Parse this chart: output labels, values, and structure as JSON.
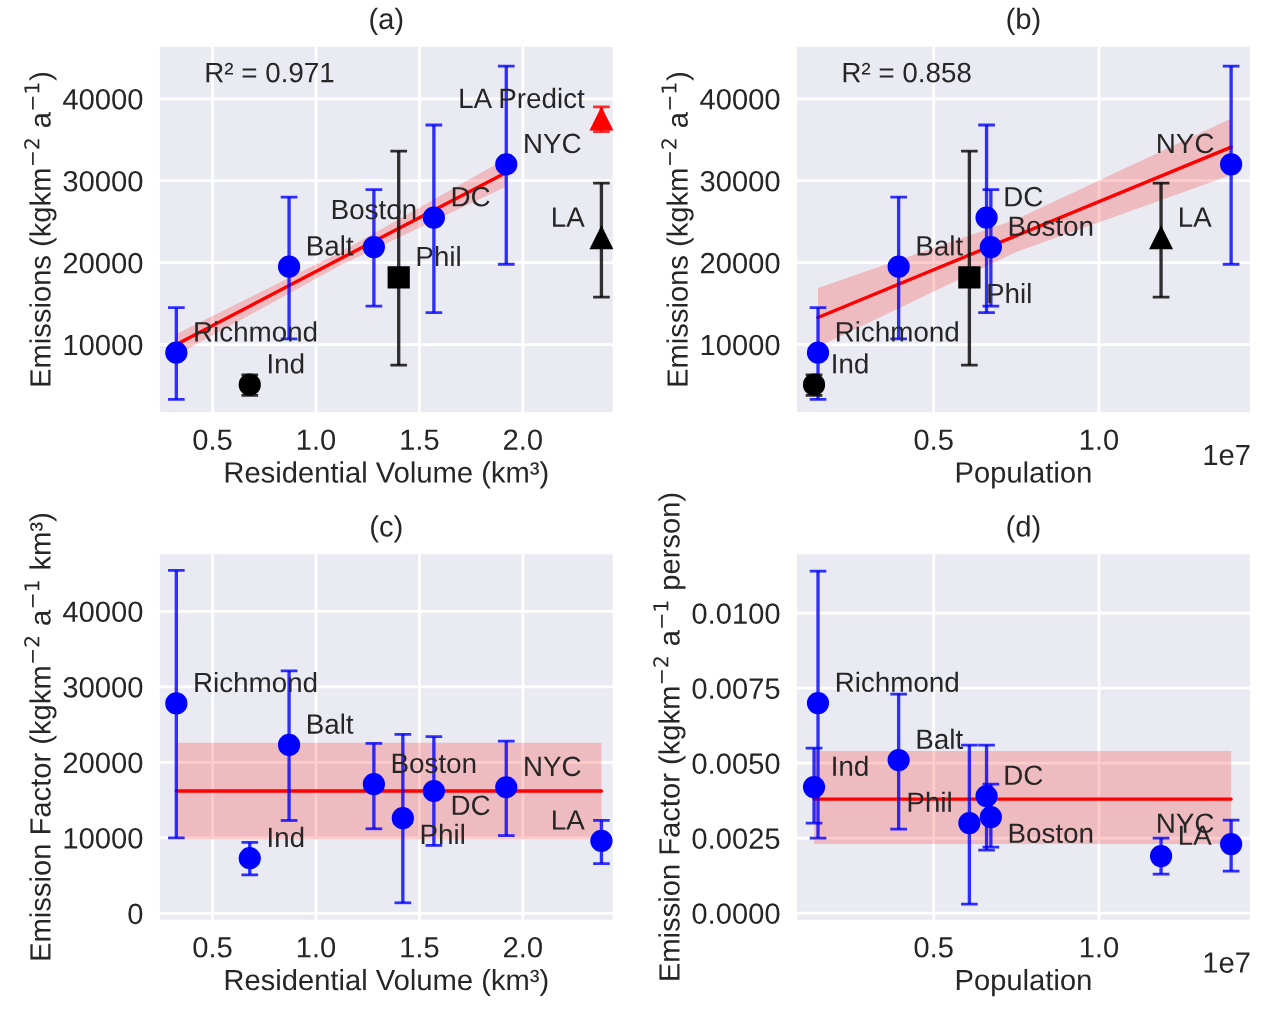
{
  "chart_data": [
    {
      "type": "scatter",
      "title": "(a)",
      "xlabel": "Residential Volume (km³)",
      "ylabel": "Emissions (kgkm$^{−2}$ a$^{−1}$)",
      "xlim": [
        0.24,
        2.44
      ],
      "xticks": [
        {
          "value": 0.5,
          "label": "0.5"
        },
        {
          "value": 1.0,
          "label": "1.0"
        },
        {
          "value": 1.5,
          "label": "1.5"
        },
        {
          "value": 2.0,
          "label": "2.0"
        }
      ],
      "ylim": [
        1600,
        46500
      ],
      "yticks": [
        10000,
        20000,
        30000,
        40000
      ],
      "grid": true,
      "legend": false,
      "series": [
        {
          "type": "scatter",
          "marker": "circle",
          "color": "#0000ff",
          "x": [
            0.325,
            0.87,
            1.28,
            1.57,
            1.92
          ],
          "values": [
            9000,
            19500,
            21900,
            25500,
            32000
          ],
          "errors": [
            [
              3300,
              14500
            ],
            [
              10700,
              28000
            ],
            [
              14700,
              28900
            ],
            [
              13900,
              36800
            ],
            [
              19800,
              44000
            ]
          ]
        },
        {
          "type": "scatter",
          "marker": "circle",
          "color": "#000000",
          "x": [
            0.68
          ],
          "values": [
            5100
          ],
          "errors": [
            [
              3800,
              6300
            ]
          ]
        },
        {
          "type": "scatter",
          "marker": "square",
          "color": "#000000",
          "x": [
            1.4
          ],
          "values": [
            18200
          ],
          "errors": [
            [
              7500,
              33600
            ]
          ]
        },
        {
          "type": "scatter",
          "marker": "triangle",
          "color": "#000000",
          "x": [
            2.38
          ],
          "values": [
            23000
          ],
          "errors": [
            [
              15800,
              29700
            ]
          ]
        },
        {
          "type": "scatter",
          "marker": "triangle",
          "color": "#ff0000",
          "x": [
            2.38
          ],
          "values": [
            37500
          ],
          "errors": [
            [
              36000,
              39000
            ]
          ]
        },
        {
          "type": "line",
          "marker": "none",
          "color": "#ff0000",
          "x": [
            0.325,
            1.12,
            1.92
          ],
          "values": [
            10000,
            20500,
            31000
          ],
          "lower": [
            8700,
            19700,
            29300
          ],
          "upper": [
            11300,
            21300,
            32700
          ]
        }
      ],
      "annotations": [
        "R² = 0.971",
        {
          "text": "Richmond",
          "x": 0.325,
          "y": 9000
        },
        {
          "text": "Balt",
          "x": 0.87,
          "y": 19500
        },
        {
          "text": "Boston",
          "x": 1.28,
          "y": 21900
        },
        {
          "text": "DC",
          "x": 1.57,
          "y": 25500
        },
        {
          "text": "NYC",
          "x": 1.92,
          "y": 32000
        },
        {
          "text": "Ind",
          "x": 0.68,
          "y": 5100
        },
        {
          "text": "Phil",
          "x": 1.4,
          "y": 18200
        },
        {
          "text": "LA",
          "x": 2.38,
          "y": 23000
        },
        {
          "text": "LA Predict",
          "x": 2.38,
          "y": 37500
        }
      ]
    },
    {
      "type": "scatter",
      "title": "(b)",
      "xlabel": "Population",
      "ylabel": "Emissions (kgkm$^{−2}$ a$^{−1}$)",
      "xlim": [
        0.083,
        1.46
      ],
      "xticks": [
        0.5,
        {
          "value": 1.0,
          "label": "1.0"
        }
      ],
      "ylim": [
        1600,
        46500
      ],
      "yticks": [
        10000,
        20000,
        30000,
        40000
      ],
      "grid": true,
      "legend": false,
      "series": [
        {
          "type": "scatter",
          "marker": "circle",
          "color": "#0000ff",
          "x": [
            0.15,
            0.394,
            0.673,
            0.66,
            1.4
          ],
          "values": [
            9000,
            19500,
            21900,
            25500,
            32000
          ],
          "errors": [
            [
              3300,
              14500
            ],
            [
              10700,
              28000
            ],
            [
              14700,
              28900
            ],
            [
              13900,
              36800
            ],
            [
              19800,
              44000
            ]
          ]
        },
        {
          "type": "scatter",
          "marker": "circle",
          "color": "#000000",
          "x": [
            0.138
          ],
          "values": [
            5100
          ],
          "errors": [
            [
              3800,
              6300
            ]
          ]
        },
        {
          "type": "scatter",
          "marker": "square",
          "color": "#000000",
          "x": [
            0.608
          ],
          "values": [
            18200
          ],
          "errors": [
            [
              7500,
              33600
            ]
          ]
        },
        {
          "type": "scatter",
          "marker": "triangle",
          "color": "#000000",
          "x": [
            1.188
          ],
          "values": [
            23000
          ],
          "errors": [
            [
              15800,
              29700
            ]
          ]
        },
        {
          "type": "line",
          "marker": "none",
          "color": "#ff0000",
          "x": [
            0.15,
            0.75,
            1.4
          ],
          "values": [
            13300,
            23300,
            34100
          ],
          "lower": [
            9700,
            21300,
            30700
          ],
          "upper": [
            16900,
            25300,
            37600
          ]
        }
      ],
      "annotations": [
        "R² = 0.858",
        "1e7",
        {
          "text": "Richmond",
          "x": 0.15,
          "y": 9000
        },
        {
          "text": "Balt",
          "x": 0.394,
          "y": 19500
        },
        {
          "text": "Boston",
          "x": 0.673,
          "y": 21900
        },
        {
          "text": "DC",
          "x": 0.66,
          "y": 25500
        },
        {
          "text": "NYC",
          "x": 1.4,
          "y": 32000
        },
        {
          "text": "Ind",
          "x": 0.138,
          "y": 5100
        },
        {
          "text": "Phil",
          "x": 0.608,
          "y": 18200
        },
        {
          "text": "LA",
          "x": 1.188,
          "y": 23000
        }
      ]
    },
    {
      "type": "scatter",
      "title": "(c)",
      "xlabel": "Residential Volume (km³)",
      "ylabel": "Emission Factor (kgkm$^{−2}$ a$^{−1}$ km³)",
      "xlim": [
        0.24,
        2.44
      ],
      "xticks": [
        {
          "value": 0.5,
          "label": "0.5"
        },
        {
          "value": 1.0,
          "label": "1.0"
        },
        {
          "value": 1.5,
          "label": "1.5"
        },
        {
          "value": 2.0,
          "label": "2.0"
        }
      ],
      "ylim": [
        -1000,
        47700
      ],
      "yticks": [
        0,
        10000,
        20000,
        30000,
        40000
      ],
      "grid": true,
      "legend": false,
      "series": [
        {
          "type": "scatter",
          "marker": "circle",
          "color": "#0000ff",
          "x": [
            0.325,
            0.68,
            0.87,
            1.28,
            1.42,
            1.57,
            1.92,
            2.38
          ],
          "values": [
            27800,
            7300,
            22300,
            17100,
            12600,
            16200,
            16700,
            9600
          ],
          "errors": [
            [
              10000,
              45400
            ],
            [
              5100,
              9400
            ],
            [
              12300,
              32100
            ],
            [
              11200,
              22500
            ],
            [
              1400,
              23700
            ],
            [
              9000,
              23400
            ],
            [
              10300,
              22800
            ],
            [
              6600,
              12300
            ]
          ]
        },
        {
          "type": "line",
          "marker": "none",
          "color": "#ff0000",
          "x": [
            0.325,
            2.38
          ],
          "values": [
            16200,
            16200
          ],
          "lower": [
            9800,
            9800
          ],
          "upper": [
            22600,
            22600
          ]
        }
      ],
      "annotations": [
        {
          "text": "Richmond",
          "x": 0.325,
          "y": 27800
        },
        {
          "text": "Ind",
          "x": 0.68,
          "y": 7300
        },
        {
          "text": "Balt",
          "x": 0.87,
          "y": 22300
        },
        {
          "text": "Boston",
          "x": 1.28,
          "y": 17100
        },
        {
          "text": "Phil",
          "x": 1.42,
          "y": 12600
        },
        {
          "text": "DC",
          "x": 1.57,
          "y": 16200
        },
        {
          "text": "NYC",
          "x": 1.92,
          "y": 16700
        },
        {
          "text": "LA",
          "x": 2.38,
          "y": 9600
        }
      ]
    },
    {
      "type": "scatter",
      "title": "(d)",
      "xlabel": "Population",
      "ylabel": "Emission Factor (kgkm$^{−2}$ a$^{−1}$ person)",
      "xlim": [
        0.083,
        1.46
      ],
      "xticks": [
        0.5,
        {
          "value": 1.0,
          "label": "1.0"
        }
      ],
      "ylim": [
        -0.00026,
        0.012
      ],
      "yticks": [
        {
          "value": 0,
          "label": "0.0000"
        },
        {
          "value": 0.0025,
          "label": "0.0025"
        },
        {
          "value": 0.005,
          "label": "0.0050"
        },
        {
          "value": 0.0075,
          "label": "0.0075"
        },
        {
          "value": 0.01,
          "label": "0.0100"
        }
      ],
      "grid": true,
      "legend": false,
      "series": [
        {
          "type": "scatter",
          "marker": "circle",
          "color": "#0000ff",
          "x": [
            0.15,
            0.138,
            0.394,
            0.608,
            0.66,
            0.673,
            1.188,
            1.4
          ],
          "values": [
            0.007,
            0.0042,
            0.0051,
            0.003,
            0.0039,
            0.0032,
            0.0019,
            0.0023
          ],
          "errors": [
            [
              0.0025,
              0.0114
            ],
            [
              0.003,
              0.0055
            ],
            [
              0.0028,
              0.0073
            ],
            [
              0.0003,
              0.0056
            ],
            [
              0.0021,
              0.0056
            ],
            [
              0.0022,
              0.0043
            ],
            [
              0.0013,
              0.0025
            ],
            [
              0.0014,
              0.0031
            ]
          ]
        },
        {
          "type": "line",
          "marker": "none",
          "color": "#ff0000",
          "x": [
            0.138,
            1.4
          ],
          "values": [
            0.0038,
            0.0038
          ],
          "lower": [
            0.0023,
            0.0023
          ],
          "upper": [
            0.0054,
            0.0054
          ]
        }
      ],
      "annotations": [
        "1e7",
        {
          "text": "Richmond",
          "x": 0.15,
          "y": 0.007
        },
        {
          "text": "Ind",
          "x": 0.138,
          "y": 0.0042
        },
        {
          "text": "Balt",
          "x": 0.394,
          "y": 0.0051
        },
        {
          "text": "Phil",
          "x": 0.608,
          "y": 0.003
        },
        {
          "text": "DC",
          "x": 0.66,
          "y": 0.0039
        },
        {
          "text": "Boston",
          "x": 0.673,
          "y": 0.0032
        },
        {
          "text": "LA",
          "x": 1.188,
          "y": 0.0019
        },
        {
          "text": "NYC",
          "x": 1.4,
          "y": 0.0023
        }
      ]
    }
  ]
}
